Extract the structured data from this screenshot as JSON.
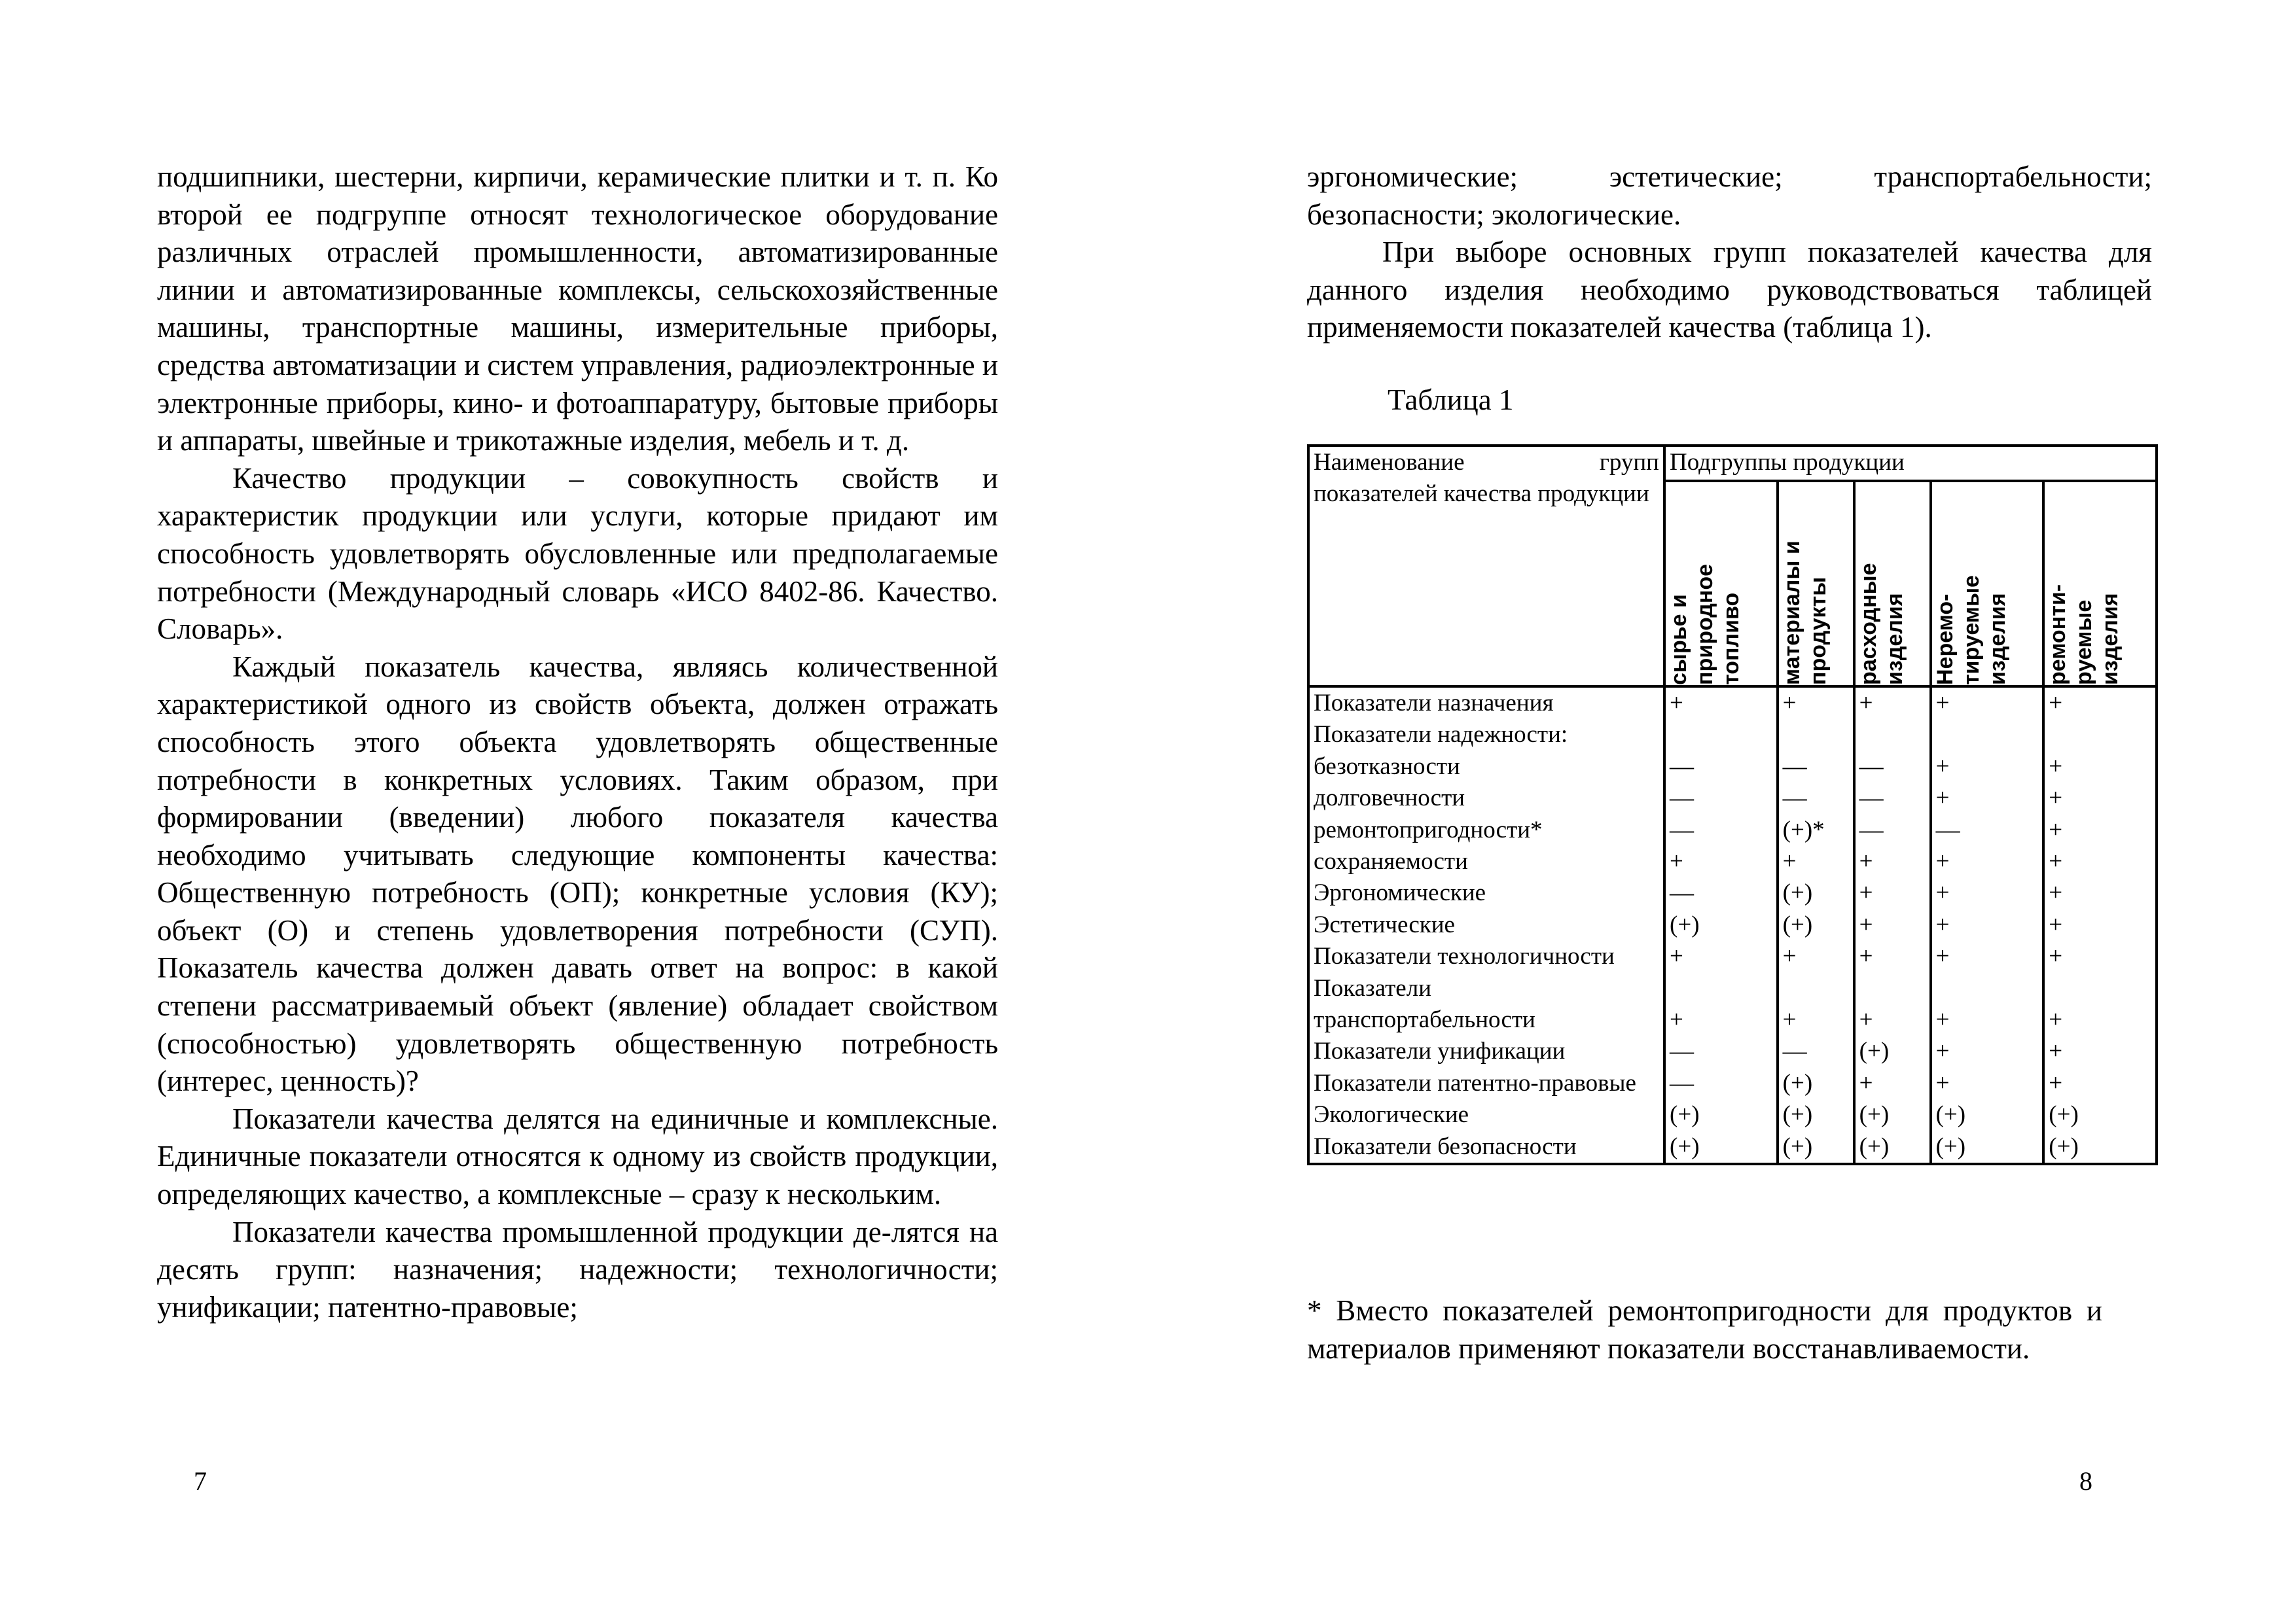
{
  "left_page": {
    "paragraphs": [
      {
        "indent": false,
        "text": "подшипники, шестерни, кирпичи, керамические плитки и т. п. Ко второй ее подгруппе относят технологическое оборудование различных отраслей промышленности, автоматизированные линии и автоматизированные комплексы, сельскохозяйственные машины, транспортные машины, измерительные приборы, средства автоматизации и систем управления, радиоэлектронные и электронные приборы, кино- и фотоаппаратуру, бытовые приборы и аппараты, швейные и трикотажные изделия, мебель и т. д."
      },
      {
        "indent": true,
        "text": "Качество продукции – совокупность свойств и характеристик продукции или услуги, которые придают им способность удовлетворять обусловленные или предполагаемые потребности (Международный словарь «ИСО 8402-86. Качество. Словарь»."
      },
      {
        "indent": true,
        "text": "Каждый показатель качества, являясь количественной характеристикой одного из свойств объекта, должен отражать способность этого объекта удовлетворять общественные потребности в конкретных условиях. Таким образом, при формировании (введении) любого показателя качества необходимо учитывать следующие компоненты качества: Общественную потребность (ОП); конкретные условия (КУ); объект (О) и степень удовлетворения потребности (СУП). Показатель качества должен давать ответ на вопрос: в какой степени рассматриваемый объект (явление) обладает свойством (способностью) удовлетворять общественную потребность (интерес, ценность)?"
      },
      {
        "indent": true,
        "text": "Показатели качества делятся на единичные и комплексные. Единичные показатели относятся к одному из свойств продукции, определяющих качество, а комплексные – сразу к нескольким."
      },
      {
        "indent": true,
        "text": "Показатели качества промышленной продукции де-лятся на десять групп: назначения; надежности; технологичности; унификации; патентно-правовые;"
      }
    ],
    "page_number": "7"
  },
  "right_page": {
    "paragraphs": [
      {
        "indent": false,
        "text": "эргономические; эстетические; транспортабельности; безопасности; экологические."
      },
      {
        "indent": true,
        "text": "При выборе основных групп показателей качества для данного изделия необходимо руководствоваться таблицей применяемости показателей качества (таблица 1)."
      }
    ],
    "table_caption": "Таблица 1",
    "table": {
      "header_first": "Наименование групп показателей качества продукции",
      "header_group": "Подгруппы продукции",
      "subgroups": [
        "сырье и\nприродное\nтопливо",
        "материалы и\nпродукты",
        "расходные\nизделия",
        "Неремо-\nтируемые\nизделия",
        "ремонти-\nруемые\nизделия"
      ],
      "rows": [
        {
          "label": "Показатели назначения",
          "values": [
            "+",
            "+",
            "+",
            "+",
            "+"
          ]
        },
        {
          "label": "Показатели надежности:",
          "values": [
            "",
            "",
            "",
            "",
            ""
          ]
        },
        {
          "label": "безотказности",
          "values": [
            "—",
            "—",
            "—",
            "+",
            "+"
          ]
        },
        {
          "label": "долговечности",
          "values": [
            "—",
            "—",
            "—",
            "+",
            "+"
          ]
        },
        {
          "label": "ремонтопригодности*",
          "values": [
            "—",
            "(+)*",
            "—",
            "—",
            "+"
          ]
        },
        {
          "label": "сохраняемости",
          "values": [
            "+",
            "+",
            "+",
            "+",
            "+"
          ]
        },
        {
          "label": "Эргономические",
          "values": [
            "—",
            "(+)",
            "+",
            "+",
            "+"
          ]
        },
        {
          "label": "Эстетические",
          "values": [
            "(+)",
            "(+)",
            "+",
            "+",
            "+"
          ]
        },
        {
          "label": "Показатели технологичности",
          "values": [
            "+",
            "+",
            "+",
            "+",
            "+"
          ]
        },
        {
          "label": "Показатели транспортабельности",
          "values": [
            "+",
            "+",
            "+",
            "+",
            "+"
          ]
        },
        {
          "label": "Показатели унификации",
          "values": [
            "—",
            "—",
            "(+)",
            "+",
            "+"
          ]
        },
        {
          "label": "Показатели патентно-правовые",
          "values": [
            "—",
            "(+)",
            "+",
            "+",
            "+"
          ]
        },
        {
          "label": "Экологические",
          "values": [
            "(+)",
            "(+)",
            "(+)",
            "(+)",
            "(+)"
          ]
        },
        {
          "label": "Показатели безопасности",
          "values": [
            "(+)",
            "(+)",
            "(+)",
            "(+)",
            "(+)"
          ]
        }
      ]
    },
    "footnote": "* Вместо показателей ремонтопригодности для продуктов и материалов применяют показатели восстанавливаемости.",
    "page_number": "8"
  }
}
